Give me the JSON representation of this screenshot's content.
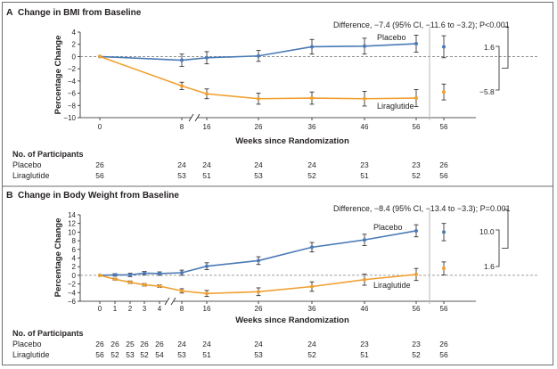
{
  "panels": [
    {
      "id": "A",
      "letter": "A",
      "title": "Change in BMI from Baseline",
      "ylabel": "Percentage Change",
      "xlabel": "Weeks since Randomization",
      "annotation": "Difference, −7.4 (95% CI, −11.6 to −3.2); P<0.001",
      "participants_title": "No. of Participants",
      "arms": [
        "Placebo",
        "Liraglutide"
      ],
      "ticks": [
        {
          "label": "0",
          "placebo": "26",
          "lira": "56"
        },
        {
          "label": "8",
          "placebo": "24",
          "lira": "53"
        },
        {
          "label": "16",
          "placebo": "24",
          "lira": "51"
        },
        {
          "label": "26",
          "placebo": "24",
          "lira": "53"
        },
        {
          "label": "36",
          "placebo": "24",
          "lira": "52"
        },
        {
          "label": "46",
          "placebo": "23",
          "lira": "51"
        },
        {
          "label": "56",
          "placebo": "23",
          "lira": "52"
        },
        {
          "label": "56",
          "placebo": "26",
          "lira": "56"
        }
      ],
      "bracket": {
        "top": "1.6",
        "bottom": "−5.8"
      }
    },
    {
      "id": "B",
      "letter": "B",
      "title": "Change in Body Weight from Baseline",
      "ylabel": "Percentage Change",
      "xlabel": "Weeks since Randomization",
      "annotation": "Difference, −8.4 (95% CI, −13.4 to −3.3); P=0.001",
      "participants_title": "No. of Participants",
      "arms": [
        "Placebo",
        "Liraglutide"
      ],
      "ticks": [
        {
          "label": "0",
          "placebo": "26",
          "lira": "56"
        },
        {
          "label": "1",
          "placebo": "26",
          "lira": "52"
        },
        {
          "label": "2",
          "placebo": "25",
          "lira": "53"
        },
        {
          "label": "3",
          "placebo": "26",
          "lira": "52"
        },
        {
          "label": "4",
          "placebo": "26",
          "lira": "54"
        },
        {
          "label": "8",
          "placebo": "24",
          "lira": "53"
        },
        {
          "label": "16",
          "placebo": "24",
          "lira": "51"
        },
        {
          "label": "26",
          "placebo": "24",
          "lira": "53"
        },
        {
          "label": "36",
          "placebo": "24",
          "lira": "52"
        },
        {
          "label": "46",
          "placebo": "23",
          "lira": "51"
        },
        {
          "label": "56",
          "placebo": "23",
          "lira": "52"
        },
        {
          "label": "56",
          "placebo": "26",
          "lira": "56"
        }
      ],
      "bracket": {
        "top": "10.0",
        "bottom": "1.6"
      }
    }
  ],
  "colors": {
    "placebo": "#4a7ab5",
    "liraglutide": "#f0a030",
    "axis": "#231f20",
    "zero_line": "#808285"
  },
  "chart_data": [
    {
      "type": "line",
      "title": "Change in BMI from Baseline",
      "xlabel": "Weeks since Randomization",
      "ylabel": "Percentage Change",
      "ylim": [
        -10,
        4
      ],
      "yticks": [
        4,
        2,
        0,
        -2,
        -4,
        -6,
        -8,
        -10
      ],
      "x": [
        0,
        8,
        16,
        26,
        36,
        46,
        56
      ],
      "x_extra": 56,
      "series": [
        {
          "name": "Placebo",
          "values": [
            0,
            -0.6,
            -0.2,
            0.1,
            1.6,
            1.7,
            2.1
          ],
          "err": [
            0,
            1.0,
            1.0,
            0.9,
            1.2,
            1.3,
            1.4
          ],
          "extra_value": 1.6,
          "extra_err": 1.8
        },
        {
          "name": "Liraglutide",
          "values": [
            0,
            -4.8,
            -6.1,
            -6.9,
            -6.8,
            -6.9,
            -6.8
          ],
          "err": [
            0,
            0.6,
            0.8,
            0.9,
            1.0,
            1.2,
            1.4
          ],
          "extra_value": -5.8,
          "extra_err": 1.3
        }
      ],
      "grid": false
    },
    {
      "type": "line",
      "title": "Change in Body Weight from Baseline",
      "xlabel": "Weeks since Randomization",
      "ylabel": "Percentage Change",
      "ylim": [
        -6,
        14
      ],
      "yticks": [
        14,
        12,
        10,
        8,
        6,
        4,
        2,
        0,
        -2,
        -4,
        -6
      ],
      "x": [
        0,
        1,
        2,
        3,
        4,
        8,
        16,
        26,
        36,
        46,
        56
      ],
      "x_extra": 56,
      "series": [
        {
          "name": "Placebo",
          "values": [
            0,
            0.1,
            0.1,
            0.5,
            0.4,
            0.6,
            2.1,
            3.4,
            6.5,
            8.2,
            10.3
          ],
          "err": [
            0,
            0.3,
            0.4,
            0.4,
            0.4,
            0.6,
            0.8,
            0.9,
            1.1,
            1.3,
            1.4
          ],
          "extra_value": 10.0,
          "extra_err": 2.0
        },
        {
          "name": "Liraglutide",
          "values": [
            0,
            -0.9,
            -1.6,
            -2.2,
            -2.5,
            -3.6,
            -4.2,
            -3.8,
            -2.6,
            -1.0,
            0.2
          ],
          "err": [
            0,
            0.2,
            0.3,
            0.3,
            0.3,
            0.5,
            0.7,
            0.9,
            1.1,
            1.3,
            1.4
          ],
          "extra_value": 1.6,
          "extra_err": 1.5
        }
      ],
      "grid": false
    }
  ]
}
